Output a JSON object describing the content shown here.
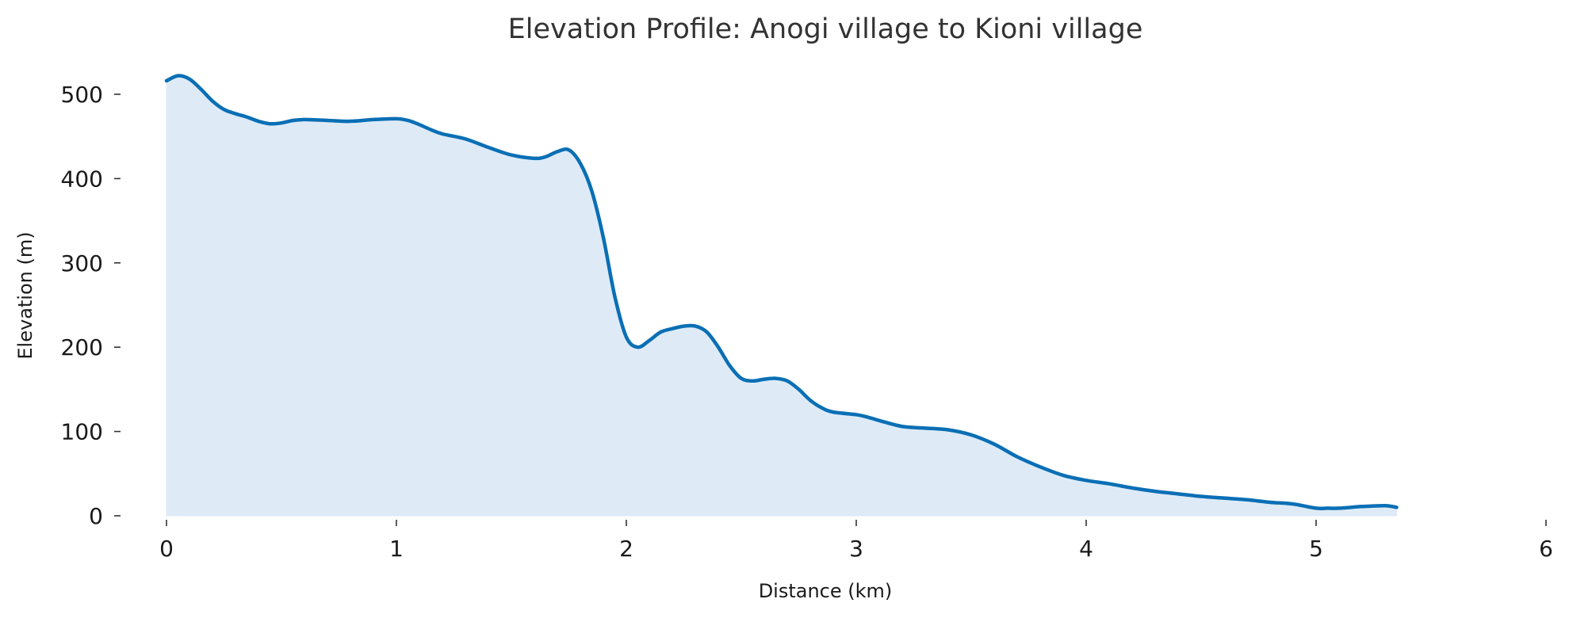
{
  "chart_data": {
    "type": "area",
    "title": "Elevation Profile: Anogi village to Kioni village",
    "xlabel": "Distance (km)",
    "ylabel": "Elevation (m)",
    "xlim": [
      0,
      6
    ],
    "ylim": [
      0,
      500
    ],
    "xticks": [
      0,
      1,
      2,
      3,
      4,
      5,
      6
    ],
    "yticks": [
      0,
      100,
      200,
      300,
      400,
      500
    ],
    "grid": false,
    "legend": "none",
    "series": [
      {
        "color": "#0a6fb5",
        "fill_color": "#deebf7",
        "points": [
          [
            0.0,
            516
          ],
          [
            0.05,
            522
          ],
          [
            0.1,
            518
          ],
          [
            0.15,
            506
          ],
          [
            0.2,
            492
          ],
          [
            0.25,
            482
          ],
          [
            0.3,
            477
          ],
          [
            0.35,
            473
          ],
          [
            0.4,
            468
          ],
          [
            0.45,
            465
          ],
          [
            0.5,
            466
          ],
          [
            0.55,
            469
          ],
          [
            0.6,
            470
          ],
          [
            0.7,
            469
          ],
          [
            0.8,
            468
          ],
          [
            0.9,
            470
          ],
          [
            1.0,
            471
          ],
          [
            1.05,
            469
          ],
          [
            1.1,
            464
          ],
          [
            1.15,
            458
          ],
          [
            1.2,
            453
          ],
          [
            1.3,
            447
          ],
          [
            1.4,
            437
          ],
          [
            1.5,
            428
          ],
          [
            1.6,
            424
          ],
          [
            1.65,
            426
          ],
          [
            1.7,
            432
          ],
          [
            1.75,
            434
          ],
          [
            1.8,
            418
          ],
          [
            1.85,
            385
          ],
          [
            1.9,
            330
          ],
          [
            1.95,
            260
          ],
          [
            2.0,
            212
          ],
          [
            2.05,
            200
          ],
          [
            2.1,
            208
          ],
          [
            2.15,
            218
          ],
          [
            2.2,
            222
          ],
          [
            2.25,
            225
          ],
          [
            2.3,
            225
          ],
          [
            2.35,
            218
          ],
          [
            2.4,
            200
          ],
          [
            2.45,
            178
          ],
          [
            2.5,
            163
          ],
          [
            2.55,
            160
          ],
          [
            2.6,
            162
          ],
          [
            2.65,
            163
          ],
          [
            2.7,
            160
          ],
          [
            2.75,
            150
          ],
          [
            2.8,
            137
          ],
          [
            2.85,
            128
          ],
          [
            2.9,
            123
          ],
          [
            3.0,
            120
          ],
          [
            3.05,
            117
          ],
          [
            3.1,
            113
          ],
          [
            3.2,
            106
          ],
          [
            3.3,
            104
          ],
          [
            3.4,
            102
          ],
          [
            3.5,
            96
          ],
          [
            3.6,
            85
          ],
          [
            3.7,
            70
          ],
          [
            3.8,
            58
          ],
          [
            3.9,
            48
          ],
          [
            4.0,
            42
          ],
          [
            4.1,
            38
          ],
          [
            4.2,
            33
          ],
          [
            4.3,
            29
          ],
          [
            4.4,
            26
          ],
          [
            4.5,
            23
          ],
          [
            4.6,
            21
          ],
          [
            4.7,
            19
          ],
          [
            4.8,
            16
          ],
          [
            4.9,
            14
          ],
          [
            5.0,
            9
          ],
          [
            5.05,
            9
          ],
          [
            5.1,
            9
          ],
          [
            5.2,
            11
          ],
          [
            5.3,
            12
          ],
          [
            5.35,
            10
          ]
        ]
      }
    ]
  }
}
